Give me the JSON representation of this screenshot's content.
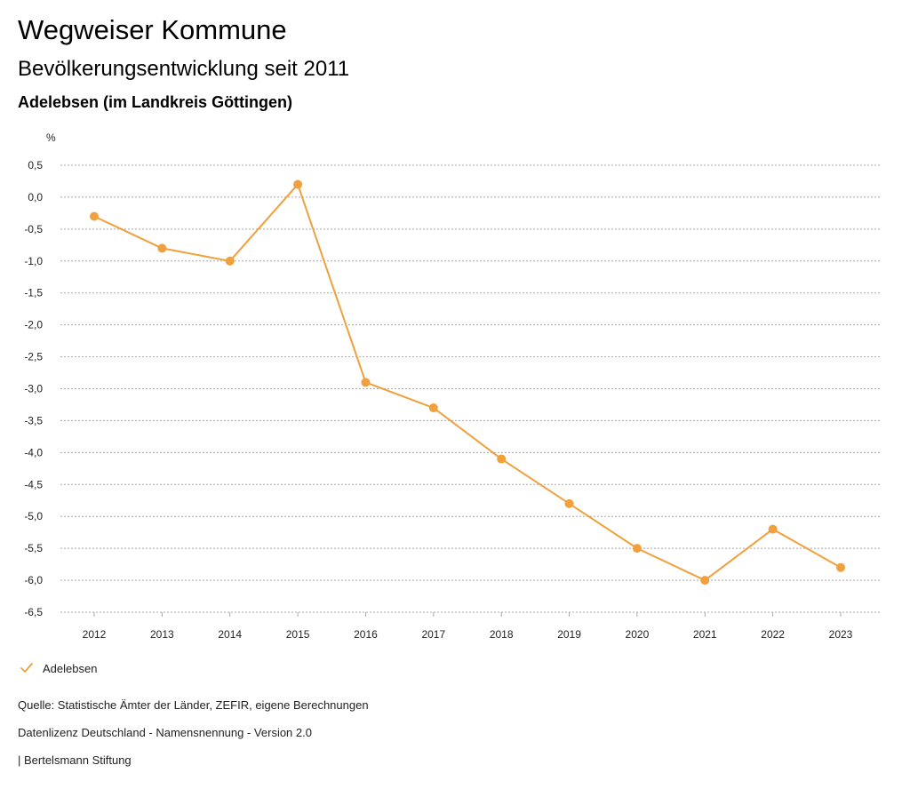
{
  "header": {
    "title": "Wegweiser Kommune",
    "subtitle": "Bevölkerungsentwicklung seit 2011",
    "region": "Adelebsen (im Landkreis Göttingen)"
  },
  "legend": {
    "label": "Adelebsen"
  },
  "footer": {
    "source": "Quelle: Statistische Ämter der Länder, ZEFIR, eigene Berechnungen",
    "license": "Datenlizenz Deutschland - Namensnennung - Version 2.0",
    "publisher": "| Bertelsmann Stiftung"
  },
  "colors": {
    "series": "#f0a03c",
    "grid": "#a8a8a8",
    "text": "#222222"
  },
  "chart_data": {
    "type": "line",
    "title": "Bevölkerungsentwicklung seit 2011",
    "ylabel": "%",
    "xlabel": "",
    "categories": [
      "2012",
      "2013",
      "2014",
      "2015",
      "2016",
      "2017",
      "2018",
      "2019",
      "2020",
      "2021",
      "2022",
      "2023"
    ],
    "series": [
      {
        "name": "Adelebsen",
        "values": [
          -0.3,
          -0.8,
          -1.0,
          0.2,
          -2.9,
          -3.3,
          -4.1,
          -4.8,
          -5.5,
          -6.0,
          -5.2,
          -5.8
        ]
      }
    ],
    "ylim": [
      -6.5,
      0.5
    ],
    "yticks": [
      0.5,
      0.0,
      -0.5,
      -1.0,
      -1.5,
      -2.0,
      -2.5,
      -3.0,
      -3.5,
      -4.0,
      -4.5,
      -5.0,
      -5.5,
      -6.0,
      -6.5
    ],
    "ytick_labels": [
      "0,5",
      "0,0",
      "-0,5",
      "-1,0",
      "-1,5",
      "-2,0",
      "-2,5",
      "-3,0",
      "-3,5",
      "-4,0",
      "-4,5",
      "-5,0",
      "-5,5",
      "-6,0",
      "-6,5"
    ],
    "grid": true,
    "legend_position": "bottom-left"
  }
}
